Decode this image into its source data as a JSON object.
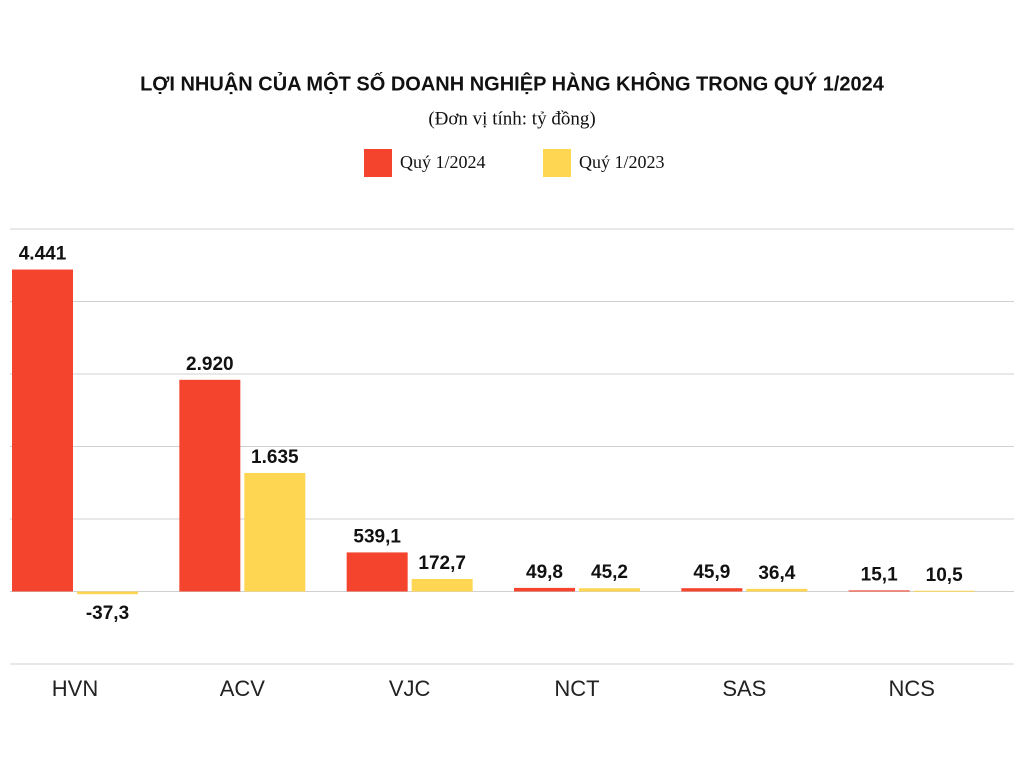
{
  "chart_data": {
    "type": "bar",
    "title": "LỢI NHUẬN CỦA MỘT SỐ DOANH NGHIỆP HÀNG KHÔNG TRONG QUÝ 1/2024",
    "subtitle": "(Đơn vị tính: tỷ đồng)",
    "categories": [
      "HVN",
      "ACV",
      "VJC",
      "NCT",
      "SAS",
      "NCS"
    ],
    "series": [
      {
        "name": "Quý 1/2024",
        "color": "#f4442e",
        "values": [
          4441,
          2920,
          539.1,
          49.8,
          45.9,
          15.1
        ],
        "value_labels": [
          "4.441",
          "2.920",
          "539,1",
          "49,8",
          "45,9",
          "15,1"
        ]
      },
      {
        "name": "Quý 1/2023",
        "color": "#ffd652",
        "values": [
          -37.3,
          1635,
          172.7,
          45.2,
          36.4,
          10.5
        ],
        "value_labels": [
          "-37,3",
          "1.635",
          "172,7",
          "45,2",
          "36,4",
          "10,5"
        ]
      }
    ],
    "ylim": [
      -1000,
      5000
    ],
    "yticks": [
      -1000,
      0,
      1000,
      2000,
      3000,
      4000,
      5000
    ],
    "grid": true
  }
}
